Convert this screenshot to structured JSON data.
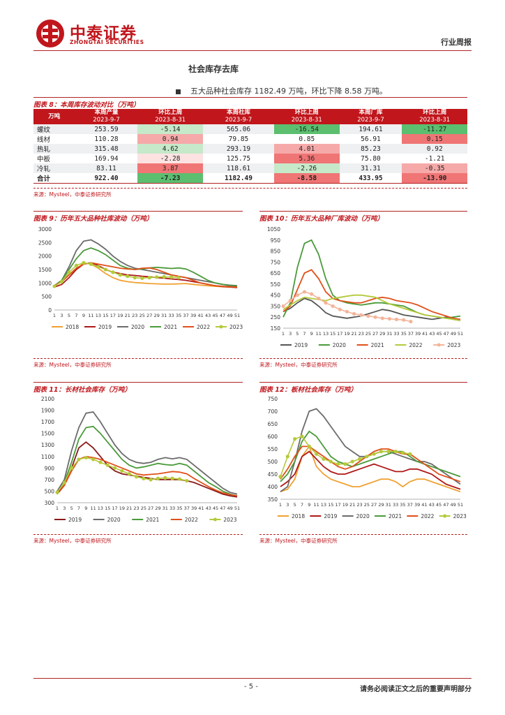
{
  "header": {
    "logo_cn": "中泰证券",
    "logo_en": "ZHONGTAI SECURITIES",
    "report_type": "行业周报"
  },
  "section_title": "社会库存去库",
  "bullet": "五大品种社会库存 1182.49 万吨，环比下降 8.58 万吨。",
  "table": {
    "caption": "图表 8：本周库存波动对比（万吨）",
    "headers": [
      [
        "万吨",
        ""
      ],
      [
        "本周产量",
        "2023-9-7"
      ],
      [
        "环比上周",
        "2023-8-31"
      ],
      [
        "本周社库",
        "2023-9-7"
      ],
      [
        "环比上周",
        "2023-8-31"
      ],
      [
        "本周厂库",
        "2023-9-7"
      ],
      [
        "环比上周",
        "2023-8-31"
      ]
    ],
    "rows": [
      {
        "name": "螺纹",
        "vals": [
          "253.59",
          "-5.14",
          "565.06",
          "-16.54",
          "194.61",
          "-11.27"
        ],
        "colors": [
          "",
          "#c6e9c9",
          "",
          "#5bbf6f",
          "",
          "#5bbf6f"
        ]
      },
      {
        "name": "线材",
        "vals": [
          "110.28",
          "0.94",
          "79.85",
          "0.85",
          "56.91",
          "0.15"
        ],
        "colors": [
          "",
          "#f6a9a9",
          "",
          "",
          "",
          "#f07575"
        ]
      },
      {
        "name": "热轧",
        "vals": [
          "315.48",
          "4.62",
          "293.19",
          "4.01",
          "85.23",
          "0.92"
        ],
        "colors": [
          "",
          "#c6e9c9",
          "",
          "#f6a9a9",
          "",
          ""
        ]
      },
      {
        "name": "中板",
        "vals": [
          "169.94",
          "-2.28",
          "125.75",
          "5.36",
          "75.80",
          "-1.21"
        ],
        "colors": [
          "",
          "#fde2e2",
          "",
          "#f07575",
          "",
          ""
        ]
      },
      {
        "name": "冷轧",
        "vals": [
          "83.11",
          "3.87",
          "118.61",
          "-2.26",
          "31.31",
          "-0.35"
        ],
        "colors": [
          "",
          "#f07575",
          "",
          "#c6e9c9",
          "",
          "#f6a9a9"
        ]
      },
      {
        "name": "合计",
        "vals": [
          "922.40",
          "-7.23",
          "1182.49",
          "-8.58",
          "433.95",
          "-13.90"
        ],
        "colors": [
          "",
          "#5bbf6f",
          "",
          "#f07575",
          "",
          "#f07575"
        ]
      }
    ],
    "source": "来源：Mysteel，中泰证券研究所"
  },
  "chart_data": [
    {
      "id": "fig9",
      "type": "line",
      "title": "图表 9：历年五大品种社库波动（万吨）",
      "ylim": [
        0,
        3000
      ],
      "yticks": [
        0,
        500,
        1000,
        1500,
        2000,
        2500,
        3000
      ],
      "xticks": [
        "1",
        "3",
        "5",
        "7",
        "9",
        "11",
        "13",
        "15",
        "17",
        "19",
        "21",
        "23",
        "25",
        "27",
        "29",
        "31",
        "33",
        "35",
        "37",
        "39",
        "41",
        "43",
        "45",
        "47",
        "49",
        "51"
      ],
      "source": "来源：Mysteel，中泰证券研究所",
      "series": [
        {
          "name": "2018",
          "color": "#f0a030",
          "marker": false,
          "values": [
            900,
            1050,
            1300,
            1500,
            1750,
            1700,
            1550,
            1350,
            1200,
            1100,
            1050,
            1020,
            1000,
            980,
            970,
            960,
            960,
            970,
            980,
            950,
            920,
            900,
            880,
            860,
            850,
            840
          ]
        },
        {
          "name": "2019",
          "color": "#b01818",
          "marker": false,
          "values": [
            850,
            950,
            1200,
            1500,
            1700,
            1750,
            1650,
            1500,
            1400,
            1350,
            1300,
            1280,
            1250,
            1230,
            1200,
            1180,
            1150,
            1130,
            1100,
            1050,
            1000,
            950,
            900,
            870,
            850,
            830
          ]
        },
        {
          "name": "2020",
          "color": "#6b6b6b",
          "marker": false,
          "values": [
            900,
            1100,
            1600,
            2200,
            2550,
            2600,
            2450,
            2250,
            2000,
            1800,
            1650,
            1550,
            1500,
            1450,
            1400,
            1350,
            1300,
            1250,
            1200,
            1150,
            1100,
            1050,
            1000,
            950,
            920,
            900
          ]
        },
        {
          "name": "2021",
          "color": "#4a9a3a",
          "marker": false,
          "values": [
            900,
            1100,
            1500,
            1900,
            2200,
            2300,
            2200,
            2050,
            1850,
            1650,
            1550,
            1500,
            1520,
            1560,
            1580,
            1560,
            1540,
            1560,
            1520,
            1400,
            1250,
            1100,
            1000,
            950,
            900,
            880
          ]
        },
        {
          "name": "2022",
          "color": "#e0501a",
          "marker": false,
          "values": [
            900,
            1050,
            1300,
            1550,
            1700,
            1750,
            1700,
            1650,
            1600,
            1550,
            1520,
            1500,
            1550,
            1560,
            1500,
            1400,
            1300,
            1250,
            1200,
            1100,
            1000,
            950,
            900,
            880,
            860,
            850
          ]
        },
        {
          "name": "2023",
          "color": "#b5c93a",
          "marker": true,
          "values": [
            880,
            1050,
            1400,
            1650,
            1750,
            1700,
            1600,
            1500,
            1400,
            1300,
            1250,
            1200,
            1180,
            1200,
            1220,
            1230,
            1220,
            1200,
            null,
            null,
            null,
            null,
            null,
            null,
            null,
            null
          ]
        }
      ]
    },
    {
      "id": "fig10",
      "type": "line",
      "title": "图表 10：历年五大品种厂库波动（万吨）",
      "ylim": [
        150,
        1050
      ],
      "yticks": [
        150,
        250,
        350,
        450,
        550,
        650,
        750,
        850,
        950,
        1050
      ],
      "xticks": [
        "1",
        "3",
        "5",
        "7",
        "9",
        "11",
        "13",
        "15",
        "17",
        "19",
        "21",
        "23",
        "25",
        "27",
        "29",
        "31",
        "33",
        "35",
        "37",
        "39",
        "41",
        "43",
        "45",
        "47",
        "49",
        "51"
      ],
      "source": "来源：Mysteel，中泰证券研究所",
      "series": [
        {
          "name": "2019",
          "color": "#555555",
          "marker": false,
          "values": [
            300,
            330,
            380,
            420,
            400,
            350,
            290,
            260,
            250,
            240,
            250,
            260,
            280,
            300,
            320,
            310,
            290,
            270,
            260,
            250,
            240,
            230,
            240,
            250,
            230,
            220
          ]
        },
        {
          "name": "2020",
          "color": "#4a9a3a",
          "marker": false,
          "values": [
            250,
            380,
            700,
            920,
            950,
            820,
            600,
            450,
            400,
            380,
            370,
            360,
            370,
            380,
            380,
            370,
            360,
            350,
            320,
            290,
            270,
            260,
            250,
            240,
            250,
            260
          ]
        },
        {
          "name": "2021",
          "color": "#e0501a",
          "marker": false,
          "values": [
            300,
            350,
            500,
            650,
            680,
            600,
            480,
            420,
            400,
            390,
            380,
            380,
            400,
            420,
            430,
            420,
            400,
            390,
            380,
            360,
            330,
            300,
            280,
            260,
            240,
            230
          ]
        },
        {
          "name": "2022",
          "color": "#b5c93a",
          "marker": false,
          "values": [
            320,
            360,
            400,
            430,
            420,
            410,
            400,
            420,
            430,
            440,
            450,
            450,
            440,
            430,
            400,
            370,
            350,
            330,
            310,
            290,
            270,
            260,
            250,
            240,
            230,
            220
          ]
        },
        {
          "name": "2023",
          "color": "#f4b49a",
          "marker": true,
          "values": [
            350,
            400,
            450,
            480,
            460,
            420,
            380,
            350,
            320,
            300,
            280,
            270,
            260,
            250,
            240,
            235,
            230,
            225,
            210,
            null,
            null,
            null,
            null,
            null,
            null,
            null
          ]
        }
      ]
    },
    {
      "id": "fig11",
      "type": "line",
      "title": "图表 11：长材社会库存（万吨）",
      "ylim": [
        300,
        2100
      ],
      "yticks": [
        300,
        500,
        700,
        900,
        1100,
        1300,
        1500,
        1700,
        1900,
        2100
      ],
      "xticks": [
        "1",
        "3",
        "5",
        "7",
        "9",
        "11",
        "13",
        "15",
        "17",
        "19",
        "21",
        "23",
        "25",
        "27",
        "29",
        "31",
        "33",
        "35",
        "37",
        "39",
        "41",
        "43",
        "45",
        "47",
        "49",
        "51"
      ],
      "source": "来源：Mysteel，中泰证券研究所",
      "series": [
        {
          "name": "2019",
          "color": "#8b1a1a",
          "marker": false,
          "values": [
            450,
            600,
            900,
            1250,
            1350,
            1250,
            1100,
            950,
            850,
            800,
            780,
            760,
            740,
            720,
            700,
            700,
            700,
            700,
            680,
            650,
            600,
            550,
            500,
            450,
            420,
            400
          ]
        },
        {
          "name": "2020",
          "color": "#6b6b6b",
          "marker": false,
          "values": [
            500,
            700,
            1200,
            1600,
            1850,
            1870,
            1700,
            1500,
            1300,
            1150,
            1050,
            1000,
            980,
            1000,
            1050,
            1080,
            1060,
            1080,
            1050,
            950,
            850,
            750,
            650,
            550,
            480,
            450
          ]
        },
        {
          "name": "2021",
          "color": "#4a9a3a",
          "marker": false,
          "values": [
            450,
            650,
            1000,
            1400,
            1600,
            1620,
            1500,
            1350,
            1200,
            1050,
            950,
            900,
            920,
            950,
            980,
            960,
            950,
            980,
            950,
            850,
            750,
            650,
            580,
            500,
            450,
            420
          ]
        },
        {
          "name": "2022",
          "color": "#e0501a",
          "marker": false,
          "values": [
            470,
            600,
            850,
            1050,
            1100,
            1080,
            1050,
            1000,
            950,
            900,
            850,
            800,
            780,
            790,
            800,
            820,
            840,
            830,
            800,
            720,
            650,
            580,
            520,
            470,
            440,
            420
          ]
        },
        {
          "name": "2023",
          "color": "#b5c93a",
          "marker": true,
          "values": [
            480,
            650,
            900,
            1050,
            1080,
            1050,
            1000,
            950,
            900,
            850,
            800,
            750,
            720,
            700,
            720,
            730,
            720,
            710,
            680,
            null,
            null,
            null,
            null,
            null,
            null,
            null
          ]
        }
      ]
    },
    {
      "id": "fig12",
      "type": "line",
      "title": "图表 12：板材社会库存（万吨）",
      "ylim": [
        350,
        750
      ],
      "yticks": [
        350,
        400,
        450,
        500,
        550,
        600,
        650,
        700,
        750
      ],
      "xticks": [
        "1",
        "3",
        "5",
        "7",
        "9",
        "11",
        "13",
        "15",
        "17",
        "19",
        "21",
        "23",
        "25",
        "27",
        "29",
        "31",
        "33",
        "35",
        "37",
        "39",
        "41",
        "43",
        "45",
        "47",
        "49",
        "51"
      ],
      "source": "来源：Mysteel，中泰证券研究所",
      "series": [
        {
          "name": "2018",
          "color": "#f0a030",
          "marker": false,
          "values": [
            380,
            390,
            430,
            520,
            560,
            480,
            450,
            430,
            420,
            410,
            400,
            400,
            410,
            420,
            430,
            430,
            420,
            400,
            420,
            430,
            430,
            420,
            410,
            400,
            390,
            380
          ]
        },
        {
          "name": "2019",
          "color": "#b01818",
          "marker": false,
          "values": [
            400,
            420,
            450,
            520,
            540,
            510,
            480,
            460,
            450,
            450,
            460,
            470,
            480,
            490,
            480,
            470,
            460,
            460,
            470,
            470,
            460,
            450,
            430,
            410,
            400,
            390
          ]
        },
        {
          "name": "2020",
          "color": "#6b6b6b",
          "marker": false,
          "values": [
            380,
            400,
            500,
            620,
            700,
            710,
            680,
            640,
            600,
            560,
            540,
            520,
            520,
            530,
            540,
            540,
            530,
            520,
            510,
            500,
            500,
            490,
            470,
            450,
            430,
            410
          ]
        },
        {
          "name": "2021",
          "color": "#4a9a3a",
          "marker": false,
          "values": [
            420,
            450,
            500,
            580,
            620,
            600,
            560,
            520,
            500,
            490,
            480,
            490,
            500,
            510,
            520,
            530,
            540,
            540,
            520,
            500,
            490,
            480,
            470,
            460,
            450,
            440
          ]
        },
        {
          "name": "2022",
          "color": "#e0501a",
          "marker": false,
          "values": [
            430,
            470,
            520,
            560,
            560,
            540,
            520,
            500,
            480,
            470,
            480,
            500,
            520,
            540,
            550,
            550,
            540,
            530,
            530,
            510,
            490,
            470,
            450,
            440,
            430,
            420
          ]
        },
        {
          "name": "2023",
          "color": "#b5c93a",
          "marker": true,
          "values": [
            440,
            520,
            590,
            600,
            560,
            530,
            510,
            500,
            490,
            490,
            500,
            510,
            520,
            530,
            540,
            540,
            540,
            535,
            530,
            null,
            null,
            null,
            null,
            null,
            null,
            null
          ]
        }
      ]
    }
  ]
}
